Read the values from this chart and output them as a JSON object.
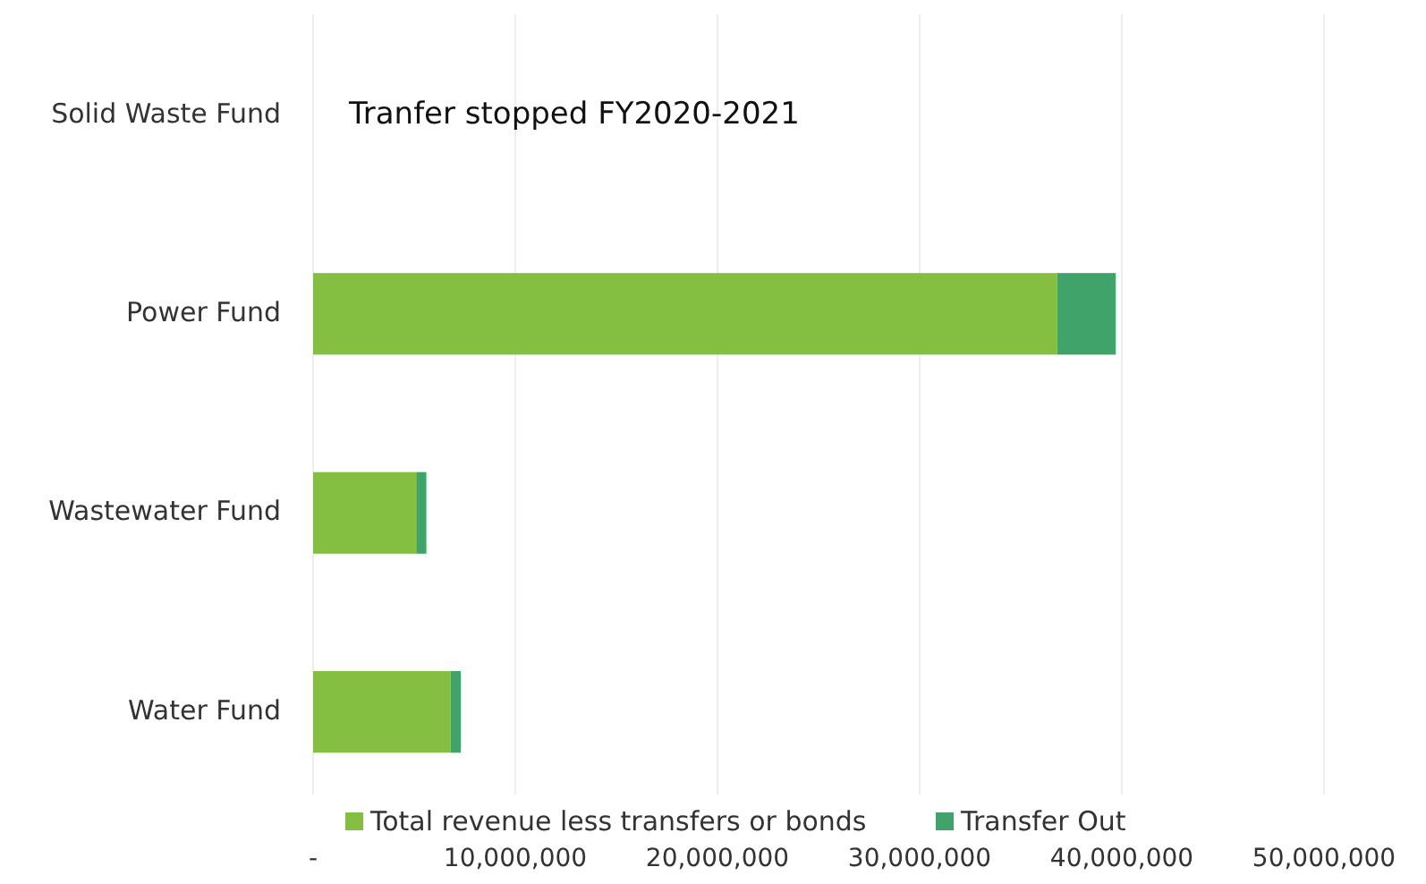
{
  "chart_data": {
    "type": "bar",
    "orientation": "horizontal",
    "stacked": true,
    "categories": [
      "Solid Waste Fund",
      "Power Fund",
      "Wastewater Fund",
      "Water Fund"
    ],
    "series": [
      {
        "name": "Total revenue less transfers or bonds",
        "color": "#84bf41",
        "values": [
          null,
          36800000,
          5100000,
          6800000
        ]
      },
      {
        "name": "Transfer Out",
        "color": "#3fa36a",
        "values": [
          null,
          2900000,
          500000,
          500000
        ]
      }
    ],
    "xlim": [
      0,
      50000000
    ],
    "xticks": [
      {
        "value": 0,
        "label": "-"
      },
      {
        "value": 10000000,
        "label": "10,000,000"
      },
      {
        "value": 20000000,
        "label": "20,000,000"
      },
      {
        "value": 30000000,
        "label": "30,000,000"
      },
      {
        "value": 40000000,
        "label": "40,000,000"
      },
      {
        "value": 50000000,
        "label": "50,000,000"
      }
    ],
    "annotations": [
      "Tranfer stopped FY2020-2021"
    ],
    "grid": "x",
    "legend": "bottom"
  }
}
